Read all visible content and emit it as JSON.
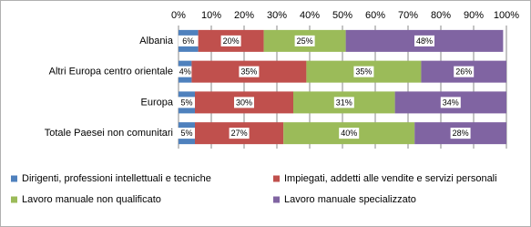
{
  "chart_data": {
    "type": "stacked_barh",
    "categories": [
      "Albania",
      "Altri Europa centro orientale",
      "Europa",
      "Totale Paesei non comunitari"
    ],
    "series": [
      {
        "name": "Dirigenti, professioni intellettuali e tecniche",
        "color": "#4f81bd",
        "values": [
          6,
          4,
          5,
          5
        ],
        "value_labels": [
          "6%",
          "4%",
          "5%",
          "5%"
        ]
      },
      {
        "name": "Impiegati, addetti alle vendite e servizi personali",
        "color": "#c0504d",
        "values": [
          20,
          35,
          30,
          27
        ],
        "value_labels": [
          "20%",
          "35%",
          "30%",
          "27%"
        ]
      },
      {
        "name": "Lavoro manuale non qualificato",
        "color": "#9bbb59",
        "values": [
          25,
          35,
          31,
          40
        ],
        "value_labels": [
          "25%",
          "35%",
          "31%",
          "40%"
        ]
      },
      {
        "name": "Lavoro manuale specializzato",
        "color": "#8064a2",
        "values": [
          48,
          26,
          34,
          28
        ],
        "value_labels": [
          "48%",
          "26%",
          "34%",
          "28%"
        ]
      }
    ],
    "xlim": [
      0,
      100
    ],
    "xticks": [
      {
        "value": 0,
        "label": "0%"
      },
      {
        "value": 10,
        "label": "10%"
      },
      {
        "value": 20,
        "label": "20%"
      },
      {
        "value": 30,
        "label": "30%"
      },
      {
        "value": 40,
        "label": "40%"
      },
      {
        "value": 50,
        "label": "50%"
      },
      {
        "value": 60,
        "label": "60%"
      },
      {
        "value": 70,
        "label": "70%"
      },
      {
        "value": 80,
        "label": "80%"
      },
      {
        "value": 90,
        "label": "90%"
      },
      {
        "value": 100,
        "label": "100%"
      }
    ],
    "grid": true,
    "legend": "bottom"
  }
}
